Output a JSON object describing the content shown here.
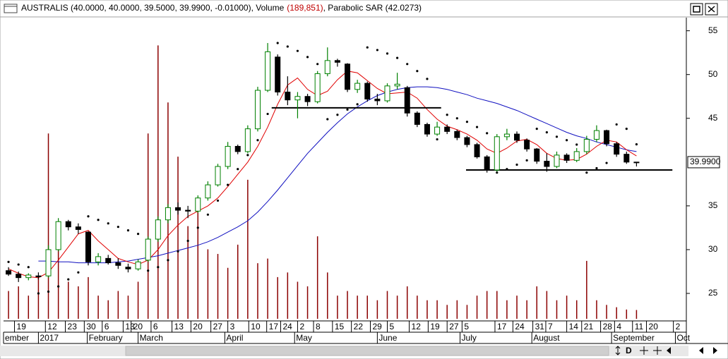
{
  "chart_data": {
    "type": "candlestick",
    "title_segments": [
      "AUSTRALIS (40.0000, 40.0000, 39.5000, 39.9900, -0.01000), Volume",
      "(189,851)",
      ", Parabolic SAR (42.0273)"
    ],
    "title_colors": [
      "#000000",
      "#c00000",
      "#000000"
    ],
    "xlim": [
      -0.5,
      68
    ],
    "ylim": [
      22.1,
      56.5
    ],
    "yticks": [
      25,
      30,
      35,
      45,
      50,
      55
    ],
    "last_price": {
      "value": 39.99,
      "label": "39.9900"
    },
    "xticks": [
      {
        "value": 0.6,
        "label": "19"
      },
      {
        "value": 3.7,
        "label": "12"
      },
      {
        "value": 5.7,
        "label": "23"
      },
      {
        "value": 7.6,
        "label": "30"
      },
      {
        "value": 9.4,
        "label": "6"
      },
      {
        "value": 11.5,
        "label": "13"
      },
      {
        "value": 12.3,
        "label": "20"
      },
      {
        "value": 14.3,
        "label": "6"
      },
      {
        "value": 16.4,
        "label": "13"
      },
      {
        "value": 18.3,
        "label": "20"
      },
      {
        "value": 20.3,
        "label": "27"
      },
      {
        "value": 22.0,
        "label": "3"
      },
      {
        "value": 24.1,
        "label": "10"
      },
      {
        "value": 25.9,
        "label": "17"
      },
      {
        "value": 27.3,
        "label": "24"
      },
      {
        "value": 29.0,
        "label": "2"
      },
      {
        "value": 30.6,
        "label": "8"
      },
      {
        "value": 32.5,
        "label": "15"
      },
      {
        "value": 34.4,
        "label": "22"
      },
      {
        "value": 36.3,
        "label": "29"
      },
      {
        "value": 38.0,
        "label": "5"
      },
      {
        "value": 40.2,
        "label": "12"
      },
      {
        "value": 42.1,
        "label": "19"
      },
      {
        "value": 44.0,
        "label": "27"
      },
      {
        "value": 45.5,
        "label": "5"
      },
      {
        "value": 48.8,
        "label": "17"
      },
      {
        "value": 50.6,
        "label": "24"
      },
      {
        "value": 52.6,
        "label": "31"
      },
      {
        "value": 53.9,
        "label": "7"
      },
      {
        "value": 56.0,
        "label": "14"
      },
      {
        "value": 57.5,
        "label": "21"
      },
      {
        "value": 59.4,
        "label": "28"
      },
      {
        "value": 60.8,
        "label": "4"
      },
      {
        "value": 62.6,
        "label": "11"
      },
      {
        "value": 64.0,
        "label": "20"
      },
      {
        "value": 66.7,
        "label": "2"
      }
    ],
    "month_ticks": [
      {
        "value": -0.5,
        "label": "ember"
      },
      {
        "value": 3.0,
        "label": "2017"
      },
      {
        "value": 7.9,
        "label": "February"
      },
      {
        "value": 13.0,
        "label": "March"
      },
      {
        "value": 21.7,
        "label": "April"
      },
      {
        "value": 28.7,
        "label": "May"
      },
      {
        "value": 37.0,
        "label": "June"
      },
      {
        "value": 45.3,
        "label": "July"
      },
      {
        "value": 52.5,
        "label": "August"
      },
      {
        "value": 60.5,
        "label": "September"
      },
      {
        "value": 66.9,
        "label": "Oct"
      }
    ],
    "up_color": "#008000",
    "down_color": "#000000",
    "open": [
      27.6,
      27.2,
      26.8,
      27.0,
      27.0,
      30.0,
      33.2,
      32.6,
      32.0,
      28.6,
      29.0,
      28.5,
      28.0,
      27.8,
      28.8,
      31.2,
      33.4,
      34.8,
      34.5,
      34.4,
      35.9,
      37.4,
      39.5,
      41.8,
      41.2,
      43.8,
      48.2,
      52.0,
      48.0,
      47.1,
      47.5,
      46.9,
      50.1,
      51.6,
      51.2,
      48.3,
      49.0,
      47.2,
      47.0,
      48.7,
      48.5,
      45.6,
      44.3,
      43.2,
      44.0,
      43.5,
      42.8,
      42.0,
      40.6,
      39.1,
      42.9,
      43.2,
      42.5,
      41.5,
      40.1,
      39.5,
      40.8,
      40.2,
      41.2,
      42.6,
      43.6,
      42.1,
      40.9,
      40.0
    ],
    "high": [
      28.0,
      27.5,
      27.3,
      27.4,
      30.5,
      33.6,
      33.4,
      33.0,
      32.1,
      29.6,
      29.4,
      29.0,
      28.4,
      28.9,
      31.5,
      33.8,
      35.2,
      35.4,
      35.0,
      36.2,
      37.8,
      39.8,
      42.3,
      42.0,
      44.2,
      48.6,
      53.6,
      52.3,
      49.8,
      48.0,
      47.8,
      50.4,
      53.1,
      51.8,
      51.3,
      49.4,
      49.2,
      47.8,
      49.0,
      50.2,
      48.7,
      45.8,
      44.5,
      44.6,
      44.3,
      43.7,
      43.0,
      42.2,
      40.8,
      43.2,
      43.8,
      43.5,
      42.7,
      41.6,
      41.0,
      41.2,
      41.0,
      41.6,
      43.0,
      44.2,
      43.7,
      42.3,
      41.2,
      40.0
    ],
    "low": [
      27.0,
      26.3,
      26.5,
      26.6,
      26.8,
      29.8,
      32.2,
      31.8,
      28.2,
      28.2,
      28.3,
      27.8,
      27.4,
      27.6,
      28.6,
      30.9,
      33.0,
      34.0,
      33.6,
      34.2,
      35.6,
      37.2,
      39.2,
      40.9,
      41.0,
      43.5,
      48.0,
      47.6,
      46.5,
      45.0,
      46.4,
      46.7,
      49.8,
      50.9,
      48.0,
      47.9,
      46.9,
      46.5,
      46.8,
      48.3,
      45.2,
      44.0,
      42.9,
      43.0,
      43.2,
      42.5,
      41.7,
      40.4,
      38.8,
      38.9,
      42.5,
      42.2,
      41.2,
      39.8,
      38.9,
      39.3,
      39.9,
      40.0,
      40.9,
      42.3,
      41.8,
      40.6,
      39.8,
      39.5
    ],
    "close": [
      27.2,
      26.8,
      27.1,
      26.9,
      30.0,
      33.2,
      32.6,
      32.3,
      28.6,
      29.2,
      28.5,
      28.2,
      27.8,
      28.6,
      31.2,
      33.4,
      34.8,
      34.5,
      34.4,
      35.9,
      37.4,
      39.5,
      41.8,
      41.2,
      43.8,
      48.2,
      52.6,
      48.0,
      47.1,
      47.5,
      46.9,
      50.1,
      51.6,
      51.4,
      48.3,
      49.0,
      47.2,
      47.0,
      48.7,
      48.9,
      45.6,
      44.3,
      43.2,
      44.0,
      43.5,
      42.8,
      42.0,
      40.6,
      39.1,
      42.9,
      43.2,
      42.5,
      41.5,
      40.1,
      39.5,
      40.8,
      40.2,
      41.2,
      42.6,
      43.6,
      42.1,
      40.9,
      40.0,
      39.99
    ],
    "volume": [
      600000,
      700000,
      500000,
      900000,
      4000000,
      1800000,
      800000,
      700000,
      900000,
      500000,
      400000,
      600000,
      500000,
      800000,
      4000000,
      5900000,
      4670000,
      3500000,
      2000000,
      2460000,
      1500000,
      1400000,
      1100000,
      1600000,
      3000000,
      1200000,
      1300000,
      900000,
      1000000,
      800000,
      700000,
      1780000,
      1000000,
      500000,
      600000,
      500000,
      500000,
      400000,
      600000,
      500000,
      700000,
      500000,
      400000,
      400000,
      300000,
      400000,
      300000,
      500000,
      600000,
      600000,
      400000,
      500000,
      400000,
      700000,
      600000,
      400000,
      500000,
      400000,
      1250000,
      400000,
      300000,
      250000,
      200000,
      189851
    ],
    "vlim": [
      0,
      6500000
    ],
    "volume_color": "#8b0000",
    "sar": [
      28.6,
      28.3,
      28.0,
      25.0,
      25.2,
      25.8,
      26.6,
      27.4,
      33.8,
      33.4,
      33.0,
      32.6,
      32.2,
      31.8,
      27.6,
      28.0,
      28.8,
      29.8,
      31.0,
      32.5,
      34.0,
      35.6,
      37.4,
      39.2,
      40.8,
      42.5,
      45.5,
      53.6,
      53.2,
      52.7,
      52.0,
      51.2,
      44.9,
      45.4,
      46.0,
      46.6,
      53.1,
      52.8,
      52.4,
      51.9,
      51.2,
      50.4,
      49.5,
      42.6,
      45.4,
      45.0,
      44.6,
      44.0,
      43.3,
      38.8,
      39.2,
      39.7,
      40.2,
      43.8,
      43.4,
      42.9,
      42.5,
      42.0,
      38.8,
      39.3,
      39.9,
      44.3,
      43.8,
      42.0273
    ],
    "sar_color": "#000000",
    "ma_short": [
      27.8,
      27.3,
      26.9,
      26.8,
      27.4,
      28.8,
      30.3,
      31.8,
      32.2,
      31.0,
      30.0,
      29.0,
      28.6,
      28.3,
      28.8,
      30.0,
      31.6,
      32.8,
      33.8,
      34.4,
      35.0,
      35.9,
      37.2,
      38.6,
      40.0,
      41.8,
      44.0,
      46.6,
      48.8,
      49.6,
      48.3,
      47.6,
      48.1,
      49.4,
      50.4,
      50.2,
      49.3,
      48.4,
      47.8,
      47.9,
      48.0,
      47.3,
      46.0,
      44.9,
      44.1,
      43.7,
      43.2,
      42.5,
      41.5,
      41.0,
      41.6,
      42.4,
      42.6,
      42.0,
      41.0,
      40.4,
      40.2,
      40.3,
      40.9,
      41.8,
      42.5,
      42.3,
      41.4,
      40.7
    ],
    "ma_short_color": "#e00000",
    "ma_long": [
      null,
      null,
      null,
      28.7,
      28.7,
      28.6,
      28.6,
      28.5,
      28.5,
      28.5,
      28.5,
      28.6,
      28.7,
      28.9,
      29.1,
      29.3,
      29.6,
      29.9,
      30.2,
      30.5,
      30.9,
      31.4,
      32.0,
      32.6,
      33.3,
      34.3,
      35.5,
      36.8,
      38.2,
      39.6,
      41.0,
      42.2,
      43.4,
      44.5,
      45.5,
      46.3,
      47.0,
      47.6,
      48.0,
      48.3,
      48.5,
      48.6,
      48.6,
      48.5,
      48.3,
      48.0,
      47.7,
      47.3,
      47.0,
      46.7,
      46.3,
      45.9,
      45.4,
      44.9,
      44.4,
      43.9,
      43.4,
      43.0,
      42.7,
      42.3,
      42.0,
      41.7,
      41.4,
      41.2
    ],
    "ma_long_color": "#1010c0",
    "hlines": [
      {
        "y": 46.2,
        "x": [
          26.4,
          43.4
        ]
      },
      {
        "y": 39.1,
        "x": [
          45.9,
          66.6
        ]
      }
    ],
    "toolbar_label": "D"
  }
}
